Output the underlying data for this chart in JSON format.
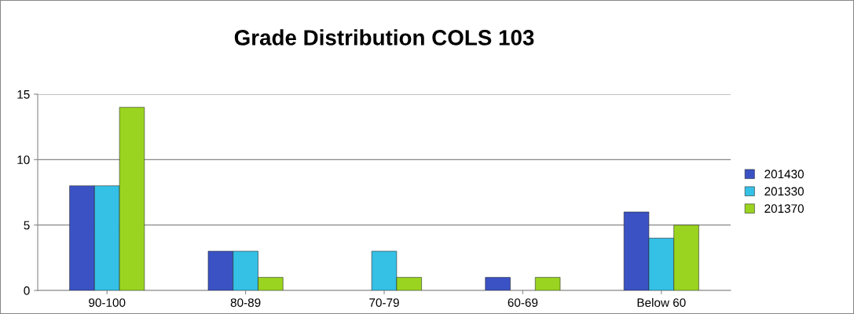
{
  "chart_data": {
    "type": "bar",
    "title": "Grade Distribution COLS 103",
    "categories": [
      "90-100",
      "80-89",
      "70-79",
      "60-69",
      "Below 60"
    ],
    "series": [
      {
        "name": "201430",
        "color": "#3a52c4",
        "values": [
          8,
          3,
          0,
          1,
          6
        ]
      },
      {
        "name": "201330",
        "color": "#35c0e6",
        "values": [
          8,
          3,
          3,
          0,
          4
        ]
      },
      {
        "name": "201370",
        "color": "#9ad420",
        "values": [
          14,
          1,
          1,
          1,
          5
        ]
      }
    ],
    "ylim": [
      0,
      15
    ],
    "yticks": [
      0,
      5,
      10,
      15
    ],
    "grid": "y",
    "legend": "right"
  }
}
